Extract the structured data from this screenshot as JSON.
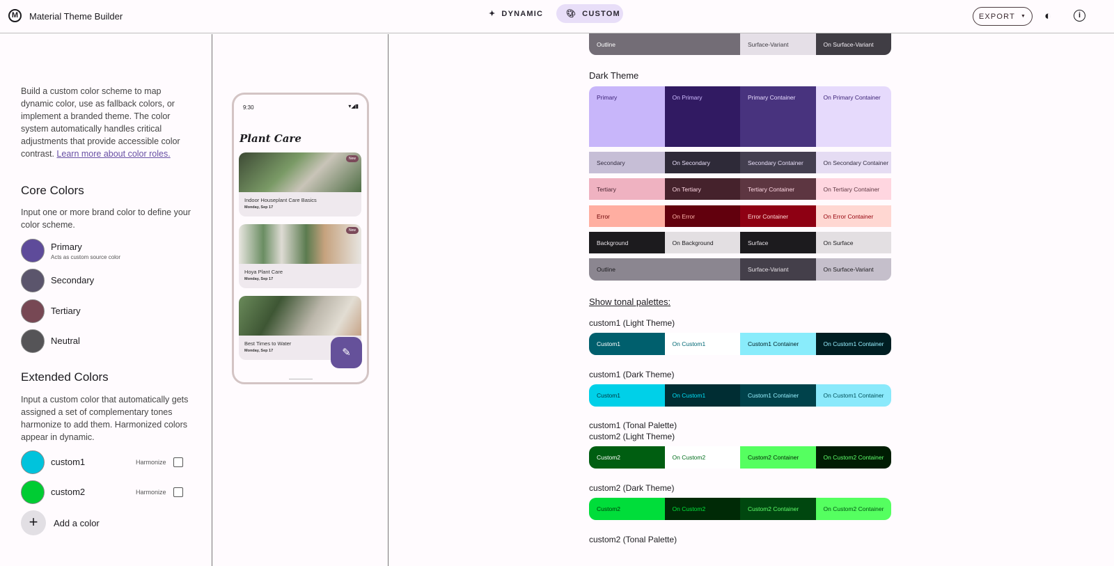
{
  "header": {
    "title": "Material Theme Builder",
    "logo": "M",
    "dynamic_label": "DYNAMIC",
    "custom_label": "CUSTOM",
    "export_label": "EXPORT",
    "dynamic_icon": "sparkle-icon",
    "custom_icon": "palette-icon",
    "theme_icon": "brightness-icon",
    "info_icon": "info-icon"
  },
  "left": {
    "intro": "Build a custom color scheme to map dynamic color, use as fallback colors, or implement a branded theme. The color system automatically handles critical adjustments that provide accessible color contrast. ",
    "intro_link": "Learn more about color roles.",
    "core_title": "Core Colors",
    "core_desc": "Input one or more brand color to define your color scheme.",
    "core": [
      {
        "name": "Primary",
        "sub": "Acts as custom source color",
        "color": "#5e4b9a"
      },
      {
        "name": "Secondary",
        "color": "#5b556c"
      },
      {
        "name": "Tertiary",
        "color": "#774854"
      },
      {
        "name": "Neutral",
        "color": "#555457"
      }
    ],
    "ext_title": "Extended Colors",
    "ext_desc": "Input a custom color that automatically gets assigned a set of complementary tones harmonize to add them. Harmonized colors appear in dynamic.",
    "ext": [
      {
        "name": "custom1",
        "color": "#00c3dc",
        "harmonize": "Harmonize",
        "checked": false
      },
      {
        "name": "custom2",
        "color": "#00cc33",
        "harmonize": "Harmonize",
        "checked": false
      }
    ],
    "add_label": "Add a color"
  },
  "phone": {
    "time": "9:30",
    "status": "▾◢▮",
    "title": "Plant Care",
    "cards": [
      {
        "title": "Indoor Houseplant Care Basics",
        "date": "Monday, Sep 17",
        "badge": "New"
      },
      {
        "title": "Hoya Plant Care",
        "date": "Monday, Sep 17",
        "badge": "New"
      },
      {
        "title": "Best Times to Water",
        "date": "Monday, Sep 17"
      }
    ],
    "fab_icon": "pencil-icon"
  },
  "scheme": {
    "light_outline_row": [
      {
        "label": "Outline",
        "bg": "#736d76",
        "fg": "#ffffff",
        "span": 2
      },
      {
        "label": "Surface-Variant",
        "bg": "#e5dfe7",
        "fg": "#3f3c43"
      },
      {
        "label": "On Surface-Variant",
        "bg": "#403d44",
        "fg": "#f2eef4"
      }
    ],
    "dark_title": "Dark Theme",
    "dark_rows": [
      [
        {
          "label": "Primary",
          "bg": "#c8b6fa",
          "fg": "#381e72"
        },
        {
          "label": "On Primary",
          "bg": "#311a62",
          "fg": "#cfbcff"
        },
        {
          "label": "Primary Container",
          "bg": "#48337e",
          "fg": "#e9ddff"
        },
        {
          "label": "On Primary Container",
          "bg": "#e6dafc",
          "fg": "#381e72"
        }
      ],
      [
        {
          "label": "Secondary",
          "bg": "#c6bed6",
          "fg": "#332d41"
        },
        {
          "label": "On Secondary",
          "bg": "#2e2a38",
          "fg": "#e8def8"
        },
        {
          "label": "Secondary Container",
          "bg": "#443f50",
          "fg": "#e8def8"
        },
        {
          "label": "On Secondary Container",
          "bg": "#e5dcf3",
          "fg": "#332d41"
        }
      ],
      [
        {
          "label": "Tertiary",
          "bg": "#efb2c1",
          "fg": "#4a2532"
        },
        {
          "label": "On Tertiary",
          "bg": "#45222c",
          "fg": "#ffd8e4"
        },
        {
          "label": "Tertiary Container",
          "bg": "#5d3641",
          "fg": "#ffd8e4"
        },
        {
          "label": "On Tertiary Container",
          "bg": "#ffd6e0",
          "fg": "#5d3641"
        }
      ],
      [
        {
          "label": "Error",
          "bg": "#ffaea1",
          "fg": "#690005"
        },
        {
          "label": "On Error",
          "bg": "#62000d",
          "fg": "#ffb4ab"
        },
        {
          "label": "Error Container",
          "bg": "#8e0013",
          "fg": "#ffdad6"
        },
        {
          "label": "On Error Container",
          "bg": "#ffd7d2",
          "fg": "#93000a"
        }
      ],
      [
        {
          "label": "Background",
          "bg": "#1c1b1e",
          "fg": "#e6e1e6"
        },
        {
          "label": "On Background",
          "bg": "#e3dfe2",
          "fg": "#1c1b1e"
        },
        {
          "label": "Surface",
          "bg": "#1c1b1e",
          "fg": "#e6e1e6"
        },
        {
          "label": "On Surface",
          "bg": "#e3dfe2",
          "fg": "#1c1b1e"
        }
      ],
      [
        {
          "label": "Outline",
          "bg": "#8b8690",
          "fg": "#1c1b1e",
          "span": 2
        },
        {
          "label": "Surface-Variant",
          "bg": "#443f4a",
          "fg": "#e6e1e6"
        },
        {
          "label": "On Surface-Variant",
          "bg": "#c5bfcb",
          "fg": "#1c1b1e"
        }
      ]
    ],
    "tonal_link": "Show tonal palettes:",
    "custom": [
      {
        "title": "custom1 (Light Theme)",
        "cells": [
          {
            "label": "Custom1",
            "bg": "#005f6d",
            "fg": "#ffffff"
          },
          {
            "label": "On Custom1",
            "bg": "#ffffff",
            "fg": "#006874"
          },
          {
            "label": "Custom1 Container",
            "bg": "#89ecfb",
            "fg": "#001f24"
          },
          {
            "label": "On Custom1 Container",
            "bg": "#001e22",
            "fg": "#97f0ff"
          }
        ]
      },
      {
        "title": "custom1 (Dark Theme)",
        "cells": [
          {
            "label": "Custom1",
            "bg": "#00d0e8",
            "fg": "#00363d"
          },
          {
            "label": "On Custom1",
            "bg": "#002d33",
            "fg": "#00e0f8"
          },
          {
            "label": "Custom1 Container",
            "bg": "#00424b",
            "fg": "#97f0ff"
          },
          {
            "label": "On Custom1 Container",
            "bg": "#8ae9fb",
            "fg": "#004f58"
          }
        ]
      },
      {
        "title": "custom1 (Tonal Palette)"
      },
      {
        "title": "custom2 (Light Theme)",
        "cells": [
          {
            "label": "Custom2",
            "bg": "#005e11",
            "fg": "#ffffff"
          },
          {
            "label": "On Custom2",
            "bg": "#ffffff",
            "fg": "#006e1c"
          },
          {
            "label": "Custom2 Container",
            "bg": "#55ff60",
            "fg": "#002204"
          },
          {
            "label": "On Custom2 Container",
            "bg": "#001d03",
            "fg": "#5fff6c"
          }
        ]
      },
      {
        "title": "custom2 (Dark Theme)",
        "cells": [
          {
            "label": "Custom2",
            "bg": "#00dd3a",
            "fg": "#003909"
          },
          {
            "label": "On Custom2",
            "bg": "#002a06",
            "fg": "#00e33a"
          },
          {
            "label": "Custom2 Container",
            "bg": "#00470f",
            "fg": "#5fff6c"
          },
          {
            "label": "On Custom2 Container",
            "bg": "#55ff60",
            "fg": "#005312"
          }
        ]
      },
      {
        "title": "custom2 (Tonal Palette)"
      }
    ]
  }
}
